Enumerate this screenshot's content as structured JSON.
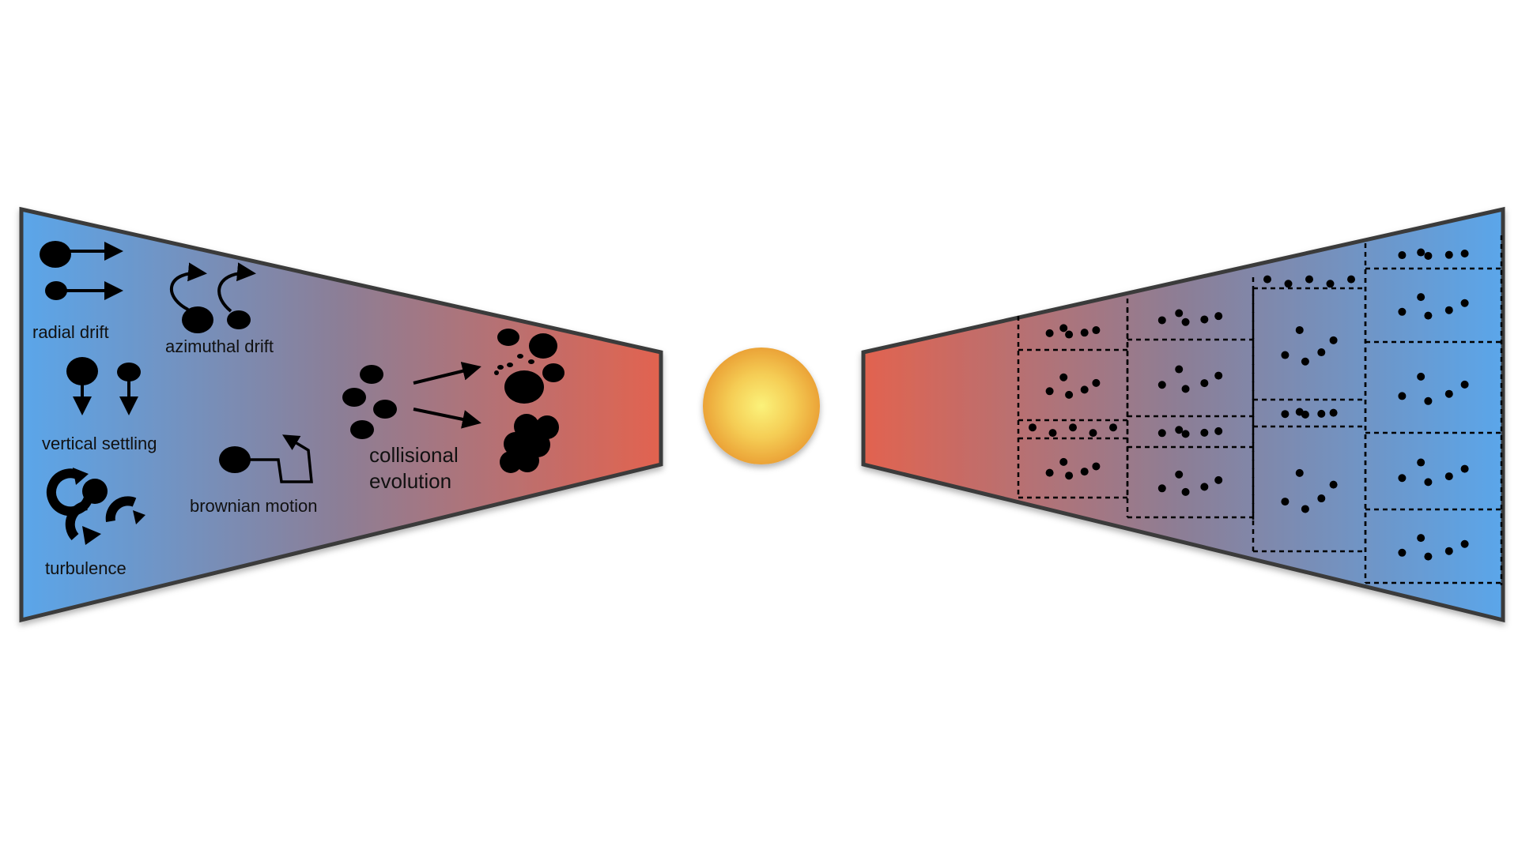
{
  "labels": {
    "radial_drift": "radial drift",
    "azimuthal_drift": "azimuthal drift",
    "vertical_settling": "vertical settling",
    "turbulence": "turbulence",
    "brownian_motion": "brownian motion",
    "collisional_line1": "collisional",
    "collisional_line2": "evolution"
  },
  "colors": {
    "disk_outer": "#5aa6ea",
    "disk_inner": "#e2634f",
    "disk_border": "#3a3a3a",
    "star_center": "#fbf27a",
    "star_edge": "#eba337",
    "ink": "#000000"
  },
  "icons": {
    "star": "star-sphere",
    "grain": "dust-grain-dot",
    "arrow": "arrow-icon"
  }
}
